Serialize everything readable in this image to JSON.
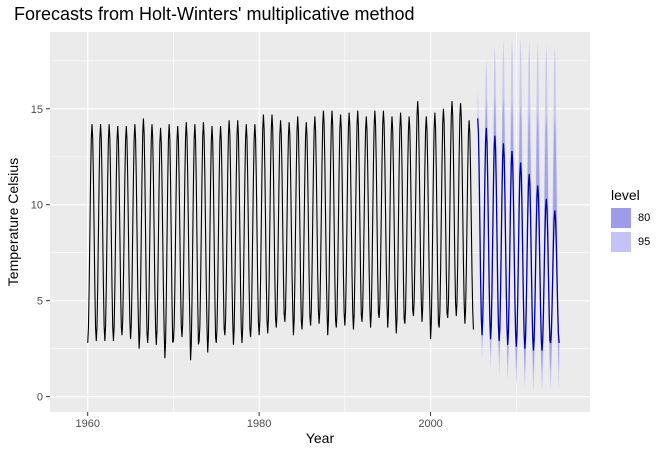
{
  "chart_data": {
    "type": "line",
    "title": "Forecasts from Holt-Winters' multiplicative method",
    "xlabel": "Year",
    "ylabel": "Temperature Celsius",
    "xlim": [
      1955.6,
      2018.6
    ],
    "ylim": [
      -0.8,
      19.0
    ],
    "x_ticks": [
      1960,
      1980,
      2000
    ],
    "y_ticks": [
      0,
      5,
      10,
      15
    ],
    "grid": true,
    "legend": {
      "title": "level",
      "position": "right",
      "entries": [
        {
          "label": "80",
          "color": "#9c9ce8"
        },
        {
          "label": "95",
          "color": "#c3c3f5"
        }
      ]
    },
    "colors": {
      "observed": "#000000",
      "forecast": "#0000aa",
      "panel": "#ebebeb",
      "grid": "#ffffff"
    },
    "series": [
      {
        "type": "observed",
        "start_year": 1960,
        "end_year": 2005,
        "annual_peaks": [
          14.2,
          14.2,
          14.2,
          14.1,
          14.1,
          14.2,
          14.5,
          14.2,
          14.0,
          14.2,
          14.1,
          14.3,
          14.2,
          14.3,
          14.1,
          14.1,
          14.4,
          14.4,
          14.2,
          14.2,
          14.7,
          14.7,
          14.4,
          14.3,
          14.6,
          14.3,
          14.6,
          14.9,
          14.9,
          14.7,
          14.8,
          14.9,
          14.6,
          14.9,
          14.9,
          14.6,
          14.8,
          14.6,
          15.4,
          14.6,
          14.8,
          15.0,
          15.4,
          15.3,
          14.4,
          14.3
        ],
        "annual_troughs": [
          2.8,
          2.9,
          2.9,
          2.9,
          3.2,
          3.0,
          2.5,
          2.8,
          2.7,
          2.0,
          2.9,
          3.1,
          1.9,
          2.9,
          2.3,
          2.8,
          3.2,
          2.7,
          2.8,
          3.1,
          3.2,
          3.3,
          3.6,
          3.9,
          3.2,
          3.5,
          3.7,
          3.8,
          3.2,
          3.6,
          3.7,
          3.5,
          3.9,
          3.6,
          4.1,
          3.6,
          3.3,
          3.8,
          4.2,
          3.9,
          3.0,
          3.6,
          4.1,
          4.2,
          3.8,
          3.5
        ]
      },
      {
        "type": "forecast",
        "start_year": 2005.5,
        "end_year": 2015,
        "annual_peaks": [
          14.5,
          14.0,
          13.6,
          13.2,
          12.8,
          12.2,
          11.6,
          11.0,
          10.3,
          9.7
        ],
        "annual_troughs": [
          3.4,
          3.2,
          3.0,
          2.9,
          2.7,
          2.6,
          2.5,
          2.4,
          2.4,
          2.8
        ],
        "pi80_upper_peaks": [
          15.0,
          15.5,
          15.7,
          15.6,
          15.4,
          15.2,
          15.0,
          14.8,
          14.7,
          14.6
        ],
        "pi95_upper_peaks": [
          16.0,
          17.6,
          18.3,
          18.6,
          18.8,
          18.7,
          18.6,
          18.5,
          18.4,
          18.3
        ],
        "pi80_lower_troughs": [
          3.0,
          2.6,
          2.2,
          1.9,
          1.6,
          1.4,
          1.3,
          1.2,
          1.2,
          1.3
        ],
        "pi95_lower_troughs": [
          2.4,
          1.9,
          1.5,
          1.1,
          0.8,
          0.6,
          0.4,
          0.3,
          0.3,
          0.4
        ]
      }
    ]
  }
}
